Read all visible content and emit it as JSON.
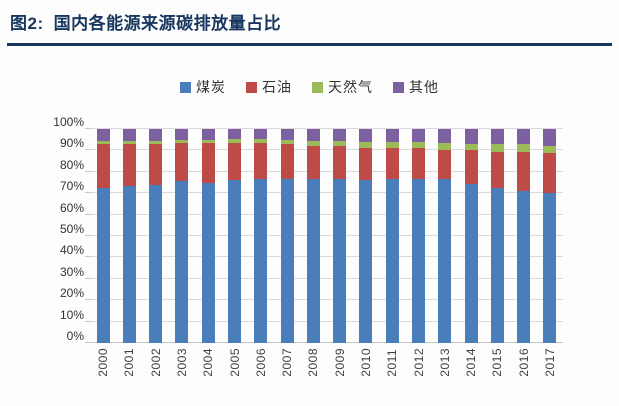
{
  "header": {
    "prefix": "图2:",
    "title": "国内各能源来源碳排放量占比"
  },
  "colors": {
    "title_navy": "#17375E",
    "grid": "#D9D9D9",
    "axis_text": "#333333",
    "coal_blue": "#4A7EBB",
    "oil_red": "#BE4B48",
    "gas_green": "#9BBB59",
    "other_purple": "#7D60A0"
  },
  "chart_data": {
    "type": "bar",
    "subtype": "stacked-100-percent",
    "title": "国内各能源来源碳排放量占比",
    "xlabel": "",
    "ylabel": "",
    "ylim": [
      0,
      100
    ],
    "grid": true,
    "legend_position": "top",
    "yticks": [
      "0%",
      "10%",
      "20%",
      "30%",
      "40%",
      "50%",
      "60%",
      "70%",
      "80%",
      "90%",
      "100%"
    ],
    "categories": [
      "2000",
      "2001",
      "2002",
      "2003",
      "2004",
      "2005",
      "2006",
      "2007",
      "2008",
      "2009",
      "2010",
      "2011",
      "2012",
      "2013",
      "2014",
      "2015",
      "2016",
      "2017"
    ],
    "series": [
      {
        "key": "coal",
        "name": "煤炭",
        "color": "#4A7EBB",
        "values": [
          72.5,
          73.5,
          74.0,
          75.5,
          75.0,
          76.0,
          76.5,
          76.5,
          76.5,
          76.5,
          76.0,
          76.5,
          76.5,
          76.5,
          74.5,
          72.5,
          71.0,
          70.0
        ]
      },
      {
        "key": "oil",
        "name": "石油",
        "color": "#BE4B48",
        "values": [
          20.5,
          19.5,
          19.0,
          18.0,
          18.5,
          17.5,
          16.8,
          16.3,
          15.5,
          15.4,
          15.2,
          14.5,
          14.5,
          13.8,
          15.5,
          16.8,
          18.3,
          18.8
        ]
      },
      {
        "key": "gas",
        "name": "天然气",
        "color": "#9BBB59",
        "values": [
          1.5,
          1.5,
          1.5,
          1.5,
          1.5,
          1.8,
          2.0,
          2.2,
          2.5,
          2.6,
          2.6,
          2.8,
          2.9,
          3.1,
          3.1,
          3.5,
          3.5,
          3.5
        ]
      },
      {
        "key": "other",
        "name": "其他",
        "color": "#7D60A0",
        "values": [
          5.5,
          5.5,
          5.5,
          5.0,
          5.0,
          4.7,
          4.7,
          5.0,
          5.5,
          5.5,
          6.2,
          6.2,
          6.1,
          6.6,
          6.9,
          7.2,
          7.2,
          7.7
        ]
      }
    ]
  }
}
